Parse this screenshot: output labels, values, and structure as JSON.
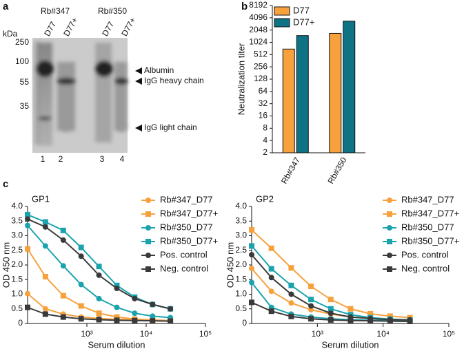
{
  "gel": {
    "panel": "a",
    "unit": "kDa",
    "groups": [
      "Rb#347",
      "Rb#350"
    ],
    "lanes": [
      "D77",
      "D77+",
      "D77",
      "D77+"
    ],
    "markers": [
      250,
      100,
      55,
      35
    ],
    "bands": [
      "Albumin",
      "IgG heavy chain",
      "IgG light chain"
    ],
    "lane_numbers": [
      1,
      2,
      3,
      4
    ]
  },
  "chart_data": [
    {
      "type": "bar",
      "panel": "b",
      "y_label": "Neutralization titer",
      "y_log": true,
      "categories": [
        "Rb#347",
        "Rb#350"
      ],
      "series": [
        {
          "name": "D77",
          "color": "#f7a13d",
          "values": [
            700,
            1700
          ]
        },
        {
          "name": "D77+",
          "color": "#0f7386",
          "values": [
            1500,
            3400
          ]
        }
      ],
      "ylim": [
        2,
        8192
      ],
      "yticks": [
        2,
        4,
        8,
        16,
        32,
        64,
        128,
        256,
        512,
        1024,
        2048,
        4096,
        8192
      ]
    },
    {
      "type": "line",
      "panel": "c",
      "title": "GP1",
      "x_label": "Serum dilution",
      "y_label": "OD 450 nm",
      "x_log": true,
      "x": [
        100,
        200,
        400,
        800,
        1600,
        3200,
        6400,
        12800,
        25600
      ],
      "xlim": [
        100,
        100000
      ],
      "xticks": [
        {
          "value": 1000,
          "label": "10³"
        },
        {
          "value": 10000,
          "label": "10⁴"
        },
        {
          "value": 100000,
          "label": "10⁵"
        }
      ],
      "ylim": [
        0,
        4
      ],
      "yticks": [
        0,
        0.5,
        {
          "value": 1,
          "label": "1.0"
        },
        1.5,
        {
          "value": 2,
          "label": "2.0"
        },
        2.5,
        {
          "value": 3,
          "label": "3.0"
        },
        3.5,
        {
          "value": 4,
          "label": "4.0"
        }
      ],
      "series": [
        {
          "name": "Rb#347_D77",
          "color": "#f7a13d",
          "marker": "circle",
          "values": [
            1.02,
            0.5,
            0.32,
            0.22,
            0.17,
            0.14,
            0.12,
            0.1,
            0.1
          ]
        },
        {
          "name": "Rb#347_D77+",
          "color": "#f7a13d",
          "marker": "square",
          "values": [
            2.55,
            1.6,
            0.95,
            0.6,
            0.35,
            0.22,
            0.15,
            0.12,
            0.1
          ]
        },
        {
          "name": "Rb#350_D77",
          "color": "#1ba3ad",
          "marker": "circle",
          "values": [
            3.35,
            2.65,
            1.97,
            1.33,
            0.85,
            0.55,
            0.35,
            0.25,
            0.2
          ]
        },
        {
          "name": "Rb#350_D77+",
          "color": "#1ba3ad",
          "marker": "square",
          "values": [
            3.72,
            3.47,
            3.18,
            2.6,
            1.95,
            1.3,
            0.9,
            0.65,
            0.5
          ]
        },
        {
          "name": "Pos. control",
          "color": "#3a3a3a",
          "marker": "circle",
          "values": [
            3.57,
            3.3,
            2.85,
            2.3,
            1.65,
            1.2,
            0.85,
            0.65,
            0.5
          ]
        },
        {
          "name": "Neg. control",
          "color": "#3a3a3a",
          "marker": "square",
          "values": [
            0.55,
            0.32,
            0.22,
            0.16,
            0.13,
            0.11,
            0.1,
            0.09,
            0.08
          ]
        }
      ]
    },
    {
      "type": "line",
      "title": "GP2",
      "x_label": "Serum dilution",
      "y_label": "OD 450 nm",
      "x_log": true,
      "x": [
        100,
        200,
        400,
        800,
        1600,
        3200,
        6400,
        12800,
        25600
      ],
      "xlim": [
        100,
        100000
      ],
      "xticks": [
        {
          "value": 1000,
          "label": "10³"
        },
        {
          "value": 10000,
          "label": "10⁴"
        },
        {
          "value": 100000,
          "label": "10⁵"
        }
      ],
      "ylim": [
        0,
        4
      ],
      "yticks": [
        0,
        0.5,
        {
          "value": 1,
          "label": "1.0"
        },
        1.5,
        {
          "value": 2,
          "label": "2.0"
        },
        2.5,
        {
          "value": 3,
          "label": "3.0"
        },
        3.5,
        {
          "value": 4,
          "label": "4.0"
        }
      ],
      "series": [
        {
          "name": "Rb#347_D77",
          "color": "#f7a13d",
          "marker": "circle",
          "values": [
            1.88,
            1.1,
            0.7,
            0.47,
            0.32,
            0.22,
            0.17,
            0.14,
            0.12
          ]
        },
        {
          "name": "Rb#347_D77+",
          "color": "#f7a13d",
          "marker": "square",
          "values": [
            3.2,
            2.57,
            1.9,
            1.27,
            0.82,
            0.5,
            0.33,
            0.25,
            0.2
          ]
        },
        {
          "name": "Rb#350_D77",
          "color": "#1ba3ad",
          "marker": "circle",
          "values": [
            1.4,
            0.55,
            0.32,
            0.22,
            0.16,
            0.13,
            0.11,
            0.1,
            0.1
          ]
        },
        {
          "name": "Rb#350_D77+",
          "color": "#1ba3ad",
          "marker": "square",
          "values": [
            2.65,
            1.87,
            1.3,
            0.82,
            0.5,
            0.3,
            0.2,
            0.15,
            0.12
          ]
        },
        {
          "name": "Pos. control",
          "color": "#3a3a3a",
          "marker": "circle",
          "values": [
            2.35,
            1.57,
            1.0,
            0.6,
            0.35,
            0.22,
            0.17,
            0.13,
            0.12
          ]
        },
        {
          "name": "Neg. control",
          "color": "#3a3a3a",
          "marker": "square",
          "values": [
            0.72,
            0.42,
            0.24,
            0.16,
            0.12,
            0.1,
            0.09,
            0.08,
            0.07
          ]
        }
      ]
    }
  ]
}
